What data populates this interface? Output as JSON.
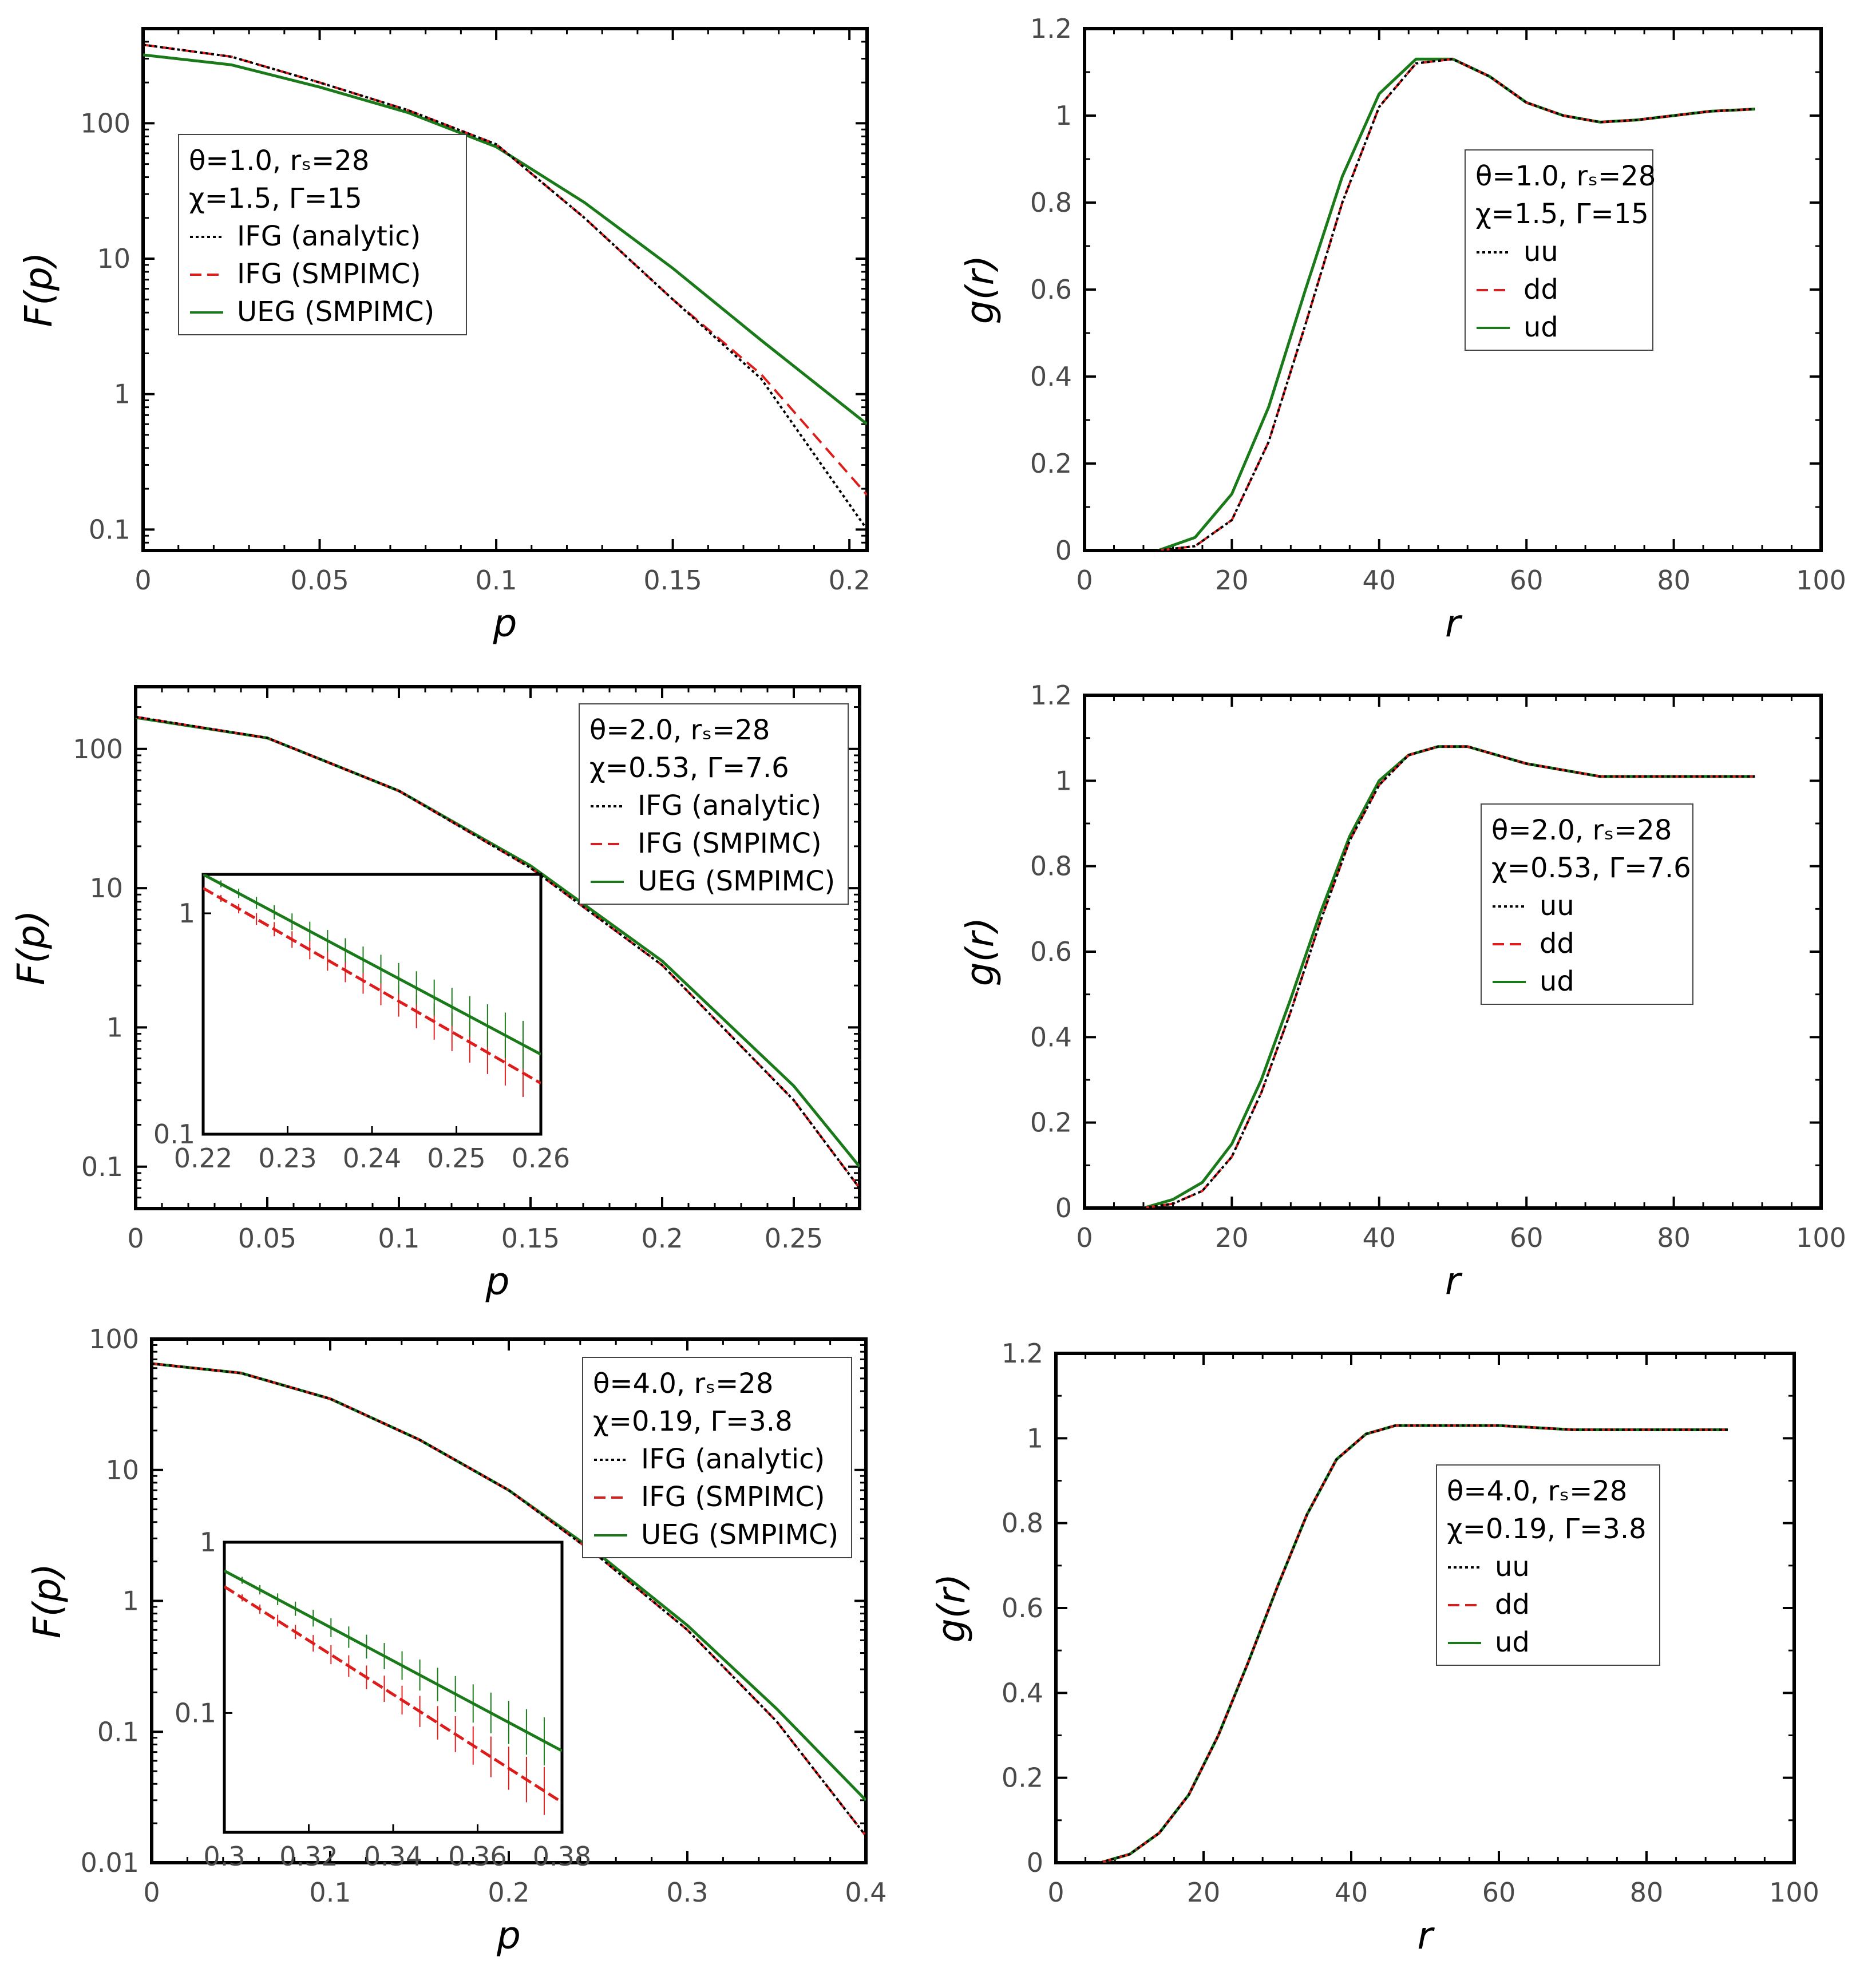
{
  "colors": {
    "uu": "#000000",
    "dd": "#dd1c1c",
    "ud": "#1a7a1a",
    "ifg_analytic": "#000000",
    "ifg_smpimc": "#dd1c1c",
    "ueg_smpimc": "#1a7a1a"
  },
  "chart_data": [
    {
      "id": "F1",
      "type": "line",
      "yscale": "log",
      "xlabel": "p",
      "ylabel": "F(p)",
      "xlim": [
        0,
        0.205
      ],
      "ylim": [
        0.07,
        500
      ],
      "xticks": [
        "0",
        "0.05",
        "0.1",
        "0.15",
        "0.2"
      ],
      "yticks": [
        "0.1",
        "1",
        "10",
        "100"
      ],
      "legend": {
        "position": "upper-left",
        "params": [
          "θ=1.0, rₛ=28",
          "χ=1.5, Γ=15"
        ],
        "entries": [
          "IFG (analytic)",
          "IFG (SMPIMC)",
          "UEG (SMPIMC)"
        ]
      },
      "series": [
        {
          "name": "IFG (analytic)",
          "style": "dotted",
          "x": [
            0,
            0.025,
            0.05,
            0.075,
            0.1,
            0.125,
            0.15,
            0.175,
            0.205
          ],
          "y": [
            380,
            310,
            200,
            125,
            70,
            20,
            5.0,
            1.3,
            0.1
          ]
        },
        {
          "name": "IFG (SMPIMC)",
          "style": "dashed",
          "x": [
            0,
            0.025,
            0.05,
            0.075,
            0.1,
            0.125,
            0.15,
            0.175,
            0.205
          ],
          "y": [
            380,
            310,
            200,
            125,
            70,
            20,
            5.0,
            1.4,
            0.18
          ]
        },
        {
          "name": "UEG (SMPIMC)",
          "style": "solid",
          "x": [
            0,
            0.025,
            0.05,
            0.075,
            0.1,
            0.125,
            0.15,
            0.175,
            0.205
          ],
          "y": [
            320,
            270,
            185,
            120,
            67,
            26,
            8.5,
            2.5,
            0.6
          ]
        }
      ]
    },
    {
      "id": "G1",
      "type": "line",
      "xlabel": "r",
      "ylabel": "g(r)",
      "xlim": [
        0,
        100
      ],
      "ylim": [
        0,
        1.2
      ],
      "xticks": [
        "0",
        "20",
        "40",
        "60",
        "80",
        "100"
      ],
      "yticks": [
        "0",
        "0.2",
        "0.4",
        "0.6",
        "0.8",
        "1",
        "1.2"
      ],
      "legend": {
        "position": "center-right",
        "params": [
          "θ=1.0, rₛ=28",
          "χ=1.5, Γ=15"
        ],
        "entries": [
          "uu",
          "dd",
          "ud"
        ]
      },
      "series": [
        {
          "name": "uu",
          "style": "dotted",
          "x": [
            10,
            15,
            20,
            25,
            30,
            35,
            40,
            45,
            50,
            55,
            60,
            65,
            70,
            75,
            80,
            85,
            91
          ],
          "y": [
            0,
            0.01,
            0.07,
            0.25,
            0.52,
            0.8,
            1.02,
            1.12,
            1.13,
            1.09,
            1.03,
            1.0,
            0.985,
            0.99,
            1.0,
            1.01,
            1.015
          ]
        },
        {
          "name": "dd",
          "style": "dashed",
          "x": [
            10,
            15,
            20,
            25,
            30,
            35,
            40,
            45,
            50,
            55,
            60,
            65,
            70,
            75,
            80,
            85,
            91
          ],
          "y": [
            0,
            0.01,
            0.07,
            0.25,
            0.52,
            0.8,
            1.02,
            1.12,
            1.13,
            1.09,
            1.03,
            1.0,
            0.985,
            0.99,
            1.0,
            1.01,
            1.015
          ]
        },
        {
          "name": "ud",
          "style": "solid",
          "x": [
            10,
            15,
            20,
            25,
            30,
            35,
            40,
            45,
            50,
            55,
            60,
            65,
            70,
            75,
            80,
            85,
            91
          ],
          "y": [
            0,
            0.03,
            0.13,
            0.33,
            0.6,
            0.86,
            1.05,
            1.13,
            1.13,
            1.09,
            1.03,
            1.0,
            0.985,
            0.99,
            1.0,
            1.01,
            1.015
          ]
        }
      ]
    },
    {
      "id": "F2",
      "type": "line",
      "yscale": "log",
      "xlabel": "p",
      "ylabel": "F(p)",
      "xlim": [
        0,
        0.275
      ],
      "ylim": [
        0.05,
        280
      ],
      "xticks": [
        "0",
        "0.05",
        "0.1",
        "0.15",
        "0.2",
        "0.25"
      ],
      "yticks": [
        "0.1",
        "1",
        "10",
        "100"
      ],
      "legend": {
        "position": "upper-right",
        "params": [
          "θ=2.0, rₛ=28",
          "χ=0.53, Γ=7.6"
        ],
        "entries": [
          "IFG (analytic)",
          "IFG (SMPIMC)",
          "UEG (SMPIMC)"
        ]
      },
      "series": [
        {
          "name": "IFG (analytic)",
          "style": "dotted",
          "x": [
            0,
            0.05,
            0.1,
            0.15,
            0.2,
            0.25,
            0.275
          ],
          "y": [
            170,
            120,
            50,
            14,
            2.8,
            0.3,
            0.07
          ]
        },
        {
          "name": "IFG (SMPIMC)",
          "style": "dashed",
          "x": [
            0,
            0.05,
            0.1,
            0.15,
            0.2,
            0.25,
            0.275
          ],
          "y": [
            170,
            120,
            50,
            14,
            2.8,
            0.3,
            0.07
          ]
        },
        {
          "name": "UEG (SMPIMC)",
          "style": "solid",
          "x": [
            0,
            0.05,
            0.1,
            0.15,
            0.2,
            0.25,
            0.275
          ],
          "y": [
            168,
            120,
            50,
            14.5,
            3.0,
            0.38,
            0.1
          ]
        }
      ],
      "inset": {
        "xlim": [
          0.22,
          0.26
        ],
        "ylim": [
          0.1,
          1.5
        ],
        "xticks": [
          "0.22",
          "0.23",
          "0.24",
          "0.25",
          "0.26"
        ],
        "yticks": [
          "0.1",
          "1"
        ],
        "series": [
          {
            "name": "IFG",
            "style": "dashed",
            "x": [
              0.22,
              0.26
            ],
            "y": [
              1.3,
              0.17
            ]
          },
          {
            "name": "UEG",
            "style": "solid",
            "x": [
              0.22,
              0.26
            ],
            "y": [
              1.5,
              0.23
            ]
          }
        ]
      }
    },
    {
      "id": "G2",
      "type": "line",
      "xlabel": "r",
      "ylabel": "g(r)",
      "xlim": [
        0,
        100
      ],
      "ylim": [
        0,
        1.2
      ],
      "xticks": [
        "0",
        "20",
        "40",
        "60",
        "80",
        "100"
      ],
      "yticks": [
        "0",
        "0.2",
        "0.4",
        "0.6",
        "0.8",
        "1",
        "1.2"
      ],
      "legend": {
        "position": "center-right",
        "params": [
          "θ=2.0, rₛ=28",
          "χ=0.53, Γ=7.6"
        ],
        "entries": [
          "uu",
          "dd",
          "ud"
        ]
      },
      "series": [
        {
          "name": "uu",
          "style": "dotted",
          "x": [
            8,
            12,
            16,
            20,
            24,
            28,
            32,
            36,
            40,
            44,
            48,
            52,
            56,
            60,
            70,
            80,
            91
          ],
          "y": [
            0,
            0.01,
            0.04,
            0.12,
            0.27,
            0.46,
            0.67,
            0.86,
            0.99,
            1.06,
            1.08,
            1.08,
            1.06,
            1.04,
            1.01,
            1.01,
            1.01
          ]
        },
        {
          "name": "dd",
          "style": "dashed",
          "x": [
            8,
            12,
            16,
            20,
            24,
            28,
            32,
            36,
            40,
            44,
            48,
            52,
            56,
            60,
            70,
            80,
            91
          ],
          "y": [
            0,
            0.01,
            0.04,
            0.12,
            0.27,
            0.46,
            0.67,
            0.86,
            0.99,
            1.06,
            1.08,
            1.08,
            1.06,
            1.04,
            1.01,
            1.01,
            1.01
          ]
        },
        {
          "name": "ud",
          "style": "solid",
          "x": [
            8,
            12,
            16,
            20,
            24,
            28,
            32,
            36,
            40,
            44,
            48,
            52,
            56,
            60,
            70,
            80,
            91
          ],
          "y": [
            0,
            0.02,
            0.06,
            0.15,
            0.3,
            0.49,
            0.69,
            0.87,
            1.0,
            1.06,
            1.08,
            1.08,
            1.06,
            1.04,
            1.01,
            1.01,
            1.01
          ]
        }
      ]
    },
    {
      "id": "F3",
      "type": "line",
      "yscale": "log",
      "xlabel": "p",
      "ylabel": "F(p)",
      "xlim": [
        0,
        0.4
      ],
      "ylim": [
        0.01,
        100
      ],
      "xticks": [
        "0",
        "0.1",
        "0.2",
        "0.3",
        "0.4"
      ],
      "yticks": [
        "0.01",
        "0.1",
        "1",
        "10",
        "100"
      ],
      "legend": {
        "position": "upper-right",
        "params": [
          "θ=4.0, rₛ=28",
          "χ=0.19, Γ=3.8"
        ],
        "entries": [
          "IFG (analytic)",
          "IFG (SMPIMC)",
          "UEG (SMPIMC)"
        ]
      },
      "series": [
        {
          "name": "IFG (analytic)",
          "style": "dotted",
          "x": [
            0,
            0.05,
            0.1,
            0.15,
            0.2,
            0.25,
            0.3,
            0.35,
            0.4
          ],
          "y": [
            65,
            55,
            35,
            17,
            7,
            2.2,
            0.6,
            0.12,
            0.016
          ]
        },
        {
          "name": "IFG (SMPIMC)",
          "style": "dashed",
          "x": [
            0,
            0.05,
            0.1,
            0.15,
            0.2,
            0.25,
            0.3,
            0.35,
            0.4
          ],
          "y": [
            65,
            55,
            35,
            17,
            7,
            2.2,
            0.6,
            0.12,
            0.016
          ]
        },
        {
          "name": "UEG (SMPIMC)",
          "style": "solid",
          "x": [
            0,
            0.05,
            0.1,
            0.15,
            0.2,
            0.25,
            0.3,
            0.35,
            0.4
          ],
          "y": [
            65,
            55,
            35,
            17,
            7,
            2.3,
            0.65,
            0.15,
            0.03
          ]
        }
      ],
      "inset": {
        "xlim": [
          0.3,
          0.38
        ],
        "ylim": [
          0.02,
          1
        ],
        "xticks": [
          "0.3",
          "0.32",
          "0.34",
          "0.36",
          "0.38"
        ],
        "yticks": [
          "0.1",
          "1"
        ],
        "series": [
          {
            "name": "IFG",
            "style": "dashed",
            "x": [
              0.3,
              0.38
            ],
            "y": [
              0.55,
              0.03
            ]
          },
          {
            "name": "UEG",
            "style": "solid",
            "x": [
              0.3,
              0.38
            ],
            "y": [
              0.68,
              0.06
            ]
          }
        ]
      }
    },
    {
      "id": "G3",
      "type": "line",
      "xlabel": "r",
      "ylabel": "g(r)",
      "xlim": [
        0,
        100
      ],
      "ylim": [
        0,
        1.2
      ],
      "xticks": [
        "0",
        "20",
        "40",
        "60",
        "80",
        "100"
      ],
      "yticks": [
        "0",
        "0.2",
        "0.4",
        "0.6",
        "0.8",
        "1",
        "1.2"
      ],
      "legend": {
        "position": "center-right",
        "params": [
          "θ=4.0, rₛ=28",
          "χ=0.19, Γ=3.8"
        ],
        "entries": [
          "uu",
          "dd",
          "ud"
        ]
      },
      "series": [
        {
          "name": "uu",
          "style": "dotted",
          "x": [
            6,
            10,
            14,
            18,
            22,
            26,
            30,
            34,
            38,
            42,
            46,
            50,
            60,
            70,
            80,
            91
          ],
          "y": [
            0,
            0.02,
            0.07,
            0.16,
            0.3,
            0.47,
            0.65,
            0.82,
            0.95,
            1.01,
            1.03,
            1.03,
            1.03,
            1.02,
            1.02,
            1.02
          ]
        },
        {
          "name": "dd",
          "style": "dashed",
          "x": [
            6,
            10,
            14,
            18,
            22,
            26,
            30,
            34,
            38,
            42,
            46,
            50,
            60,
            70,
            80,
            91
          ],
          "y": [
            0,
            0.02,
            0.07,
            0.16,
            0.3,
            0.47,
            0.65,
            0.82,
            0.95,
            1.01,
            1.03,
            1.03,
            1.03,
            1.02,
            1.02,
            1.02
          ]
        },
        {
          "name": "ud",
          "style": "solid",
          "x": [
            6,
            10,
            14,
            18,
            22,
            26,
            30,
            34,
            38,
            42,
            46,
            50,
            60,
            70,
            80,
            91
          ],
          "y": [
            0,
            0.02,
            0.07,
            0.16,
            0.3,
            0.47,
            0.65,
            0.82,
            0.95,
            1.01,
            1.03,
            1.03,
            1.03,
            1.02,
            1.02,
            1.02
          ]
        }
      ]
    }
  ]
}
